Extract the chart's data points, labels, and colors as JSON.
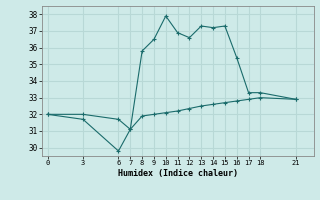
{
  "xlabel": "Humidex (Indice chaleur)",
  "ylabel": "",
  "background_color": "#ceeae8",
  "line_color": "#1a6b6b",
  "grid_color": "#b8d8d6",
  "line1_x": [
    0,
    3,
    6,
    7,
    8,
    9,
    10,
    11,
    12,
    13,
    14,
    15,
    16,
    17,
    18,
    21
  ],
  "line1_y": [
    32,
    32,
    31.7,
    31.1,
    35.8,
    36.5,
    37.9,
    36.9,
    36.6,
    37.3,
    37.2,
    37.3,
    35.4,
    33.3,
    33.3,
    32.9
  ],
  "line2_x": [
    0,
    3,
    6,
    7,
    8,
    9,
    10,
    11,
    12,
    13,
    14,
    15,
    16,
    17,
    18,
    21
  ],
  "line2_y": [
    32,
    31.7,
    29.8,
    31.1,
    31.9,
    32.0,
    32.1,
    32.2,
    32.35,
    32.5,
    32.6,
    32.7,
    32.8,
    32.9,
    33.0,
    32.9
  ],
  "xticks": [
    0,
    3,
    6,
    7,
    8,
    9,
    10,
    11,
    12,
    13,
    14,
    15,
    16,
    17,
    18,
    21
  ],
  "yticks": [
    30,
    31,
    32,
    33,
    34,
    35,
    36,
    37,
    38
  ],
  "ylim": [
    29.5,
    38.5
  ],
  "xlim": [
    -0.5,
    22.5
  ]
}
